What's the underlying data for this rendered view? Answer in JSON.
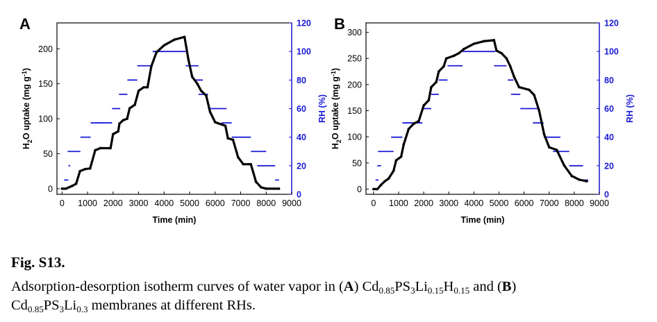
{
  "figure_label": "Fig. S13.",
  "caption": {
    "line1_prefix": "Adsorption-desorption isotherm curves of water vapor in (",
    "letter_a": "A",
    "mid_text": ") ",
    "mem_a": [
      {
        "t": "Cd"
      },
      {
        "s": "0.85"
      },
      {
        "t": "PS"
      },
      {
        "s": "3"
      },
      {
        "t": "Li"
      },
      {
        "s": "0.15"
      },
      {
        "t": "H"
      },
      {
        "s": "0.15"
      }
    ],
    "and_text": " and (",
    "letter_b": "B",
    "close_text": ")",
    "mem_b": [
      {
        "t": "Cd"
      },
      {
        "s": "0.85"
      },
      {
        "t": "PS"
      },
      {
        "s": "3"
      },
      {
        "t": "Li"
      },
      {
        "s": "0.3"
      }
    ],
    "end_text": " membranes at different RHs."
  },
  "colors": {
    "uptake": "#000000",
    "rh": "#1a1ad6",
    "axis": "#000000"
  },
  "chart_data": [
    {
      "panel": "A",
      "type": "line",
      "xlabel": "Time (min)",
      "ylabel": "H2O uptake (mg g-1)",
      "y2label": "RH (%)",
      "xlim": [
        -200,
        9000
      ],
      "xticks": [
        "0",
        "1000",
        "2000",
        "3000",
        "4000",
        "5000",
        "6000",
        "7000",
        "8000",
        "9000"
      ],
      "ylim": [
        -8,
        237
      ],
      "yticks": [
        "0",
        "50",
        "100",
        "150",
        "200"
      ],
      "y2lim": [
        0,
        120
      ],
      "y2ticks": [
        "0",
        "20",
        "40",
        "60",
        "80",
        "100",
        "120"
      ],
      "uptake_steps": [
        [
          0,
          0
        ],
        [
          150,
          0
        ],
        [
          400,
          4
        ],
        [
          550,
          7
        ],
        [
          700,
          25
        ],
        [
          900,
          28
        ],
        [
          1100,
          29
        ],
        [
          1300,
          55
        ],
        [
          1500,
          58
        ],
        [
          1900,
          58
        ],
        [
          2000,
          78
        ],
        [
          2200,
          82
        ],
        [
          2250,
          93
        ],
        [
          2400,
          98
        ],
        [
          2550,
          100
        ],
        [
          2650,
          115
        ],
        [
          2850,
          120
        ],
        [
          3000,
          140
        ],
        [
          3200,
          145
        ],
        [
          3350,
          145
        ],
        [
          3500,
          175
        ],
        [
          3700,
          195
        ],
        [
          4000,
          205
        ],
        [
          4400,
          213
        ],
        [
          4800,
          217
        ],
        [
          4950,
          185
        ],
        [
          5100,
          160
        ],
        [
          5300,
          150
        ],
        [
          5450,
          140
        ],
        [
          5650,
          133
        ],
        [
          5800,
          110
        ],
        [
          6000,
          95
        ],
        [
          6400,
          90
        ],
        [
          6500,
          72
        ],
        [
          6700,
          70
        ],
        [
          6900,
          45
        ],
        [
          7100,
          35
        ],
        [
          7400,
          35
        ],
        [
          7600,
          10
        ],
        [
          7800,
          2
        ],
        [
          8000,
          0
        ],
        [
          8500,
          0
        ]
      ],
      "rh_segments": [
        {
          "x0": 80,
          "x1": 250,
          "rh": 10
        },
        {
          "x0": 250,
          "x1": 320,
          "rh": 20
        },
        {
          "x0": 220,
          "x1": 720,
          "rh": 30
        },
        {
          "x0": 720,
          "x1": 1120,
          "rh": 40
        },
        {
          "x0": 1120,
          "x1": 1960,
          "rh": 50
        },
        {
          "x0": 1960,
          "x1": 2280,
          "rh": 60
        },
        {
          "x0": 2230,
          "x1": 2560,
          "rh": 70
        },
        {
          "x0": 2560,
          "x1": 2950,
          "rh": 80
        },
        {
          "x0": 2950,
          "x1": 3550,
          "rh": 90
        },
        {
          "x0": 3550,
          "x1": 4850,
          "rh": 100
        },
        {
          "x0": 4850,
          "x1": 5350,
          "rh": 90
        },
        {
          "x0": 5180,
          "x1": 5520,
          "rh": 80
        },
        {
          "x0": 5350,
          "x1": 5720,
          "rh": 70
        },
        {
          "x0": 5720,
          "x1": 6450,
          "rh": 60
        },
        {
          "x0": 6250,
          "x1": 6650,
          "rh": 50
        },
        {
          "x0": 6650,
          "x1": 7400,
          "rh": 40
        },
        {
          "x0": 7400,
          "x1": 8000,
          "rh": 30
        },
        {
          "x0": 7650,
          "x1": 8350,
          "rh": 20
        },
        {
          "x0": 8350,
          "x1": 8500,
          "rh": 10
        }
      ]
    },
    {
      "panel": "B",
      "type": "line",
      "xlabel": "Time (min)",
      "ylabel": "H2O uptake (mg g-1)",
      "y2label": "RH (%)",
      "xlim": [
        -300,
        9000
      ],
      "xticks": [
        "0",
        "1000",
        "2000",
        "3000",
        "4000",
        "5000",
        "6000",
        "7000",
        "8000",
        "9000"
      ],
      "ylim": [
        -10,
        318
      ],
      "yticks": [
        "0",
        "50",
        "100",
        "150",
        "200",
        "250",
        "300"
      ],
      "y2lim": [
        0,
        120
      ],
      "y2ticks": [
        "0",
        "20",
        "40",
        "60",
        "80",
        "100",
        "120"
      ],
      "uptake_steps": [
        [
          0,
          0
        ],
        [
          150,
          0
        ],
        [
          300,
          8
        ],
        [
          450,
          15
        ],
        [
          600,
          20
        ],
        [
          800,
          35
        ],
        [
          900,
          55
        ],
        [
          1100,
          62
        ],
        [
          1200,
          85
        ],
        [
          1400,
          115
        ],
        [
          1600,
          125
        ],
        [
          1800,
          130
        ],
        [
          2000,
          160
        ],
        [
          2200,
          170
        ],
        [
          2300,
          195
        ],
        [
          2500,
          205
        ],
        [
          2600,
          225
        ],
        [
          2800,
          235
        ],
        [
          2900,
          250
        ],
        [
          3200,
          255
        ],
        [
          3400,
          260
        ],
        [
          3600,
          268
        ],
        [
          4000,
          278
        ],
        [
          4400,
          283
        ],
        [
          4800,
          285
        ],
        [
          4900,
          265
        ],
        [
          5100,
          260
        ],
        [
          5300,
          250
        ],
        [
          5450,
          235
        ],
        [
          5600,
          215
        ],
        [
          5800,
          195
        ],
        [
          6200,
          190
        ],
        [
          6400,
          180
        ],
        [
          6600,
          150
        ],
        [
          6800,
          105
        ],
        [
          7000,
          80
        ],
        [
          7300,
          75
        ],
        [
          7600,
          45
        ],
        [
          7900,
          25
        ],
        [
          8200,
          18
        ],
        [
          8500,
          15
        ]
      ],
      "rh_segments": [
        {
          "x0": 80,
          "x1": 200,
          "rh": 10
        },
        {
          "x0": 150,
          "x1": 300,
          "rh": 20
        },
        {
          "x0": 180,
          "x1": 800,
          "rh": 30
        },
        {
          "x0": 700,
          "x1": 1150,
          "rh": 40
        },
        {
          "x0": 1150,
          "x1": 1950,
          "rh": 50
        },
        {
          "x0": 1950,
          "x1": 2300,
          "rh": 60
        },
        {
          "x0": 2300,
          "x1": 2600,
          "rh": 70
        },
        {
          "x0": 2600,
          "x1": 2950,
          "rh": 80
        },
        {
          "x0": 2950,
          "x1": 3550,
          "rh": 90
        },
        {
          "x0": 3550,
          "x1": 4850,
          "rh": 100
        },
        {
          "x0": 4800,
          "x1": 5300,
          "rh": 90
        },
        {
          "x0": 5350,
          "x1": 5580,
          "rh": 80
        },
        {
          "x0": 5480,
          "x1": 5850,
          "rh": 70
        },
        {
          "x0": 5850,
          "x1": 6550,
          "rh": 60
        },
        {
          "x0": 6350,
          "x1": 6780,
          "rh": 50
        },
        {
          "x0": 6780,
          "x1": 7450,
          "rh": 40
        },
        {
          "x0": 7150,
          "x1": 7800,
          "rh": 30
        },
        {
          "x0": 7800,
          "x1": 8350,
          "rh": 20
        },
        {
          "x0": 8250,
          "x1": 8550,
          "rh": 10
        }
      ]
    }
  ]
}
